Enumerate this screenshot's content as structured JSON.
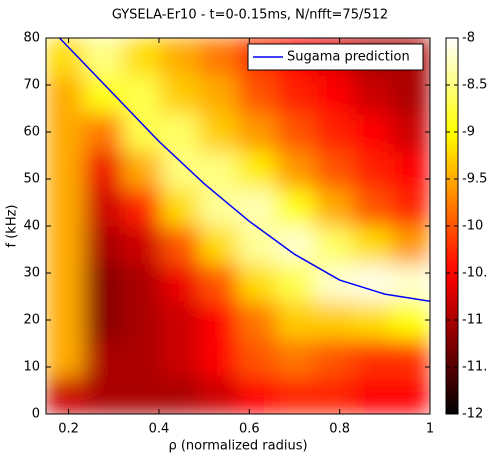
{
  "chart_data": {
    "type": "heatmap",
    "title": "GYSELA-Er10 - t=0-0.15ms, N/nfft=75/512",
    "xlabel": "ρ (normalized radius)",
    "ylabel": "f (kHz)",
    "colormap": "hot",
    "xlim": [
      0.15,
      1
    ],
    "ylim": [
      0,
      80
    ],
    "xticks": [
      0.2,
      0.4,
      0.6,
      0.8,
      1
    ],
    "yticks": [
      0,
      10,
      20,
      30,
      40,
      50,
      60,
      70,
      80
    ],
    "zlim": [
      -12,
      -8
    ],
    "zticks": [
      -8,
      -8.5,
      -9,
      -9.5,
      -10,
      {
        "value": -10.5,
        "label": "-10."
      },
      -11,
      {
        "value": -11.5,
        "label": "-11."
      },
      -12
    ],
    "x": [
      0.1925,
      0.2775,
      0.3625,
      0.4475,
      0.5325,
      0.6175,
      0.7025,
      0.7875,
      0.8725,
      0.9575
    ],
    "y": [
      4,
      12,
      20,
      28,
      36,
      44,
      52,
      60,
      68,
      76
    ],
    "z": [
      [
        -10.8,
        -11,
        -11,
        -11,
        -10.8,
        -10.5,
        -10.3,
        -10.3,
        -10.5,
        -10.5
      ],
      [
        -9.5,
        -11,
        -11,
        -10.8,
        -10.5,
        -10,
        -9.8,
        -10,
        -10.2,
        -10.2
      ],
      [
        -9.5,
        -11.2,
        -11,
        -10.8,
        -10.5,
        -9.8,
        -9.3,
        -9.3,
        -9.2,
        -9
      ],
      [
        -9.5,
        -11.2,
        -11,
        -10.6,
        -10,
        -9.2,
        -8.7,
        -8.2,
        -8.1,
        -8.2
      ],
      [
        -9.5,
        -11,
        -10.8,
        -10,
        -9.2,
        -8.4,
        -8.2,
        -8.6,
        -9.2,
        -9.6
      ],
      [
        -9.5,
        -10.8,
        -10.3,
        -9.2,
        -8.4,
        -8.3,
        -8.9,
        -9.5,
        -10,
        -10.3
      ],
      [
        -9.5,
        -10.6,
        -9.5,
        -8.5,
        -8.5,
        -9.1,
        -9.6,
        -10,
        -10.3,
        -10.5
      ],
      [
        -9.5,
        -9.8,
        -8.7,
        -8.6,
        -9.3,
        -9.6,
        -10,
        -10.3,
        -10.5,
        -10.8
      ],
      [
        -9.5,
        -8.9,
        -8.7,
        -9.3,
        -9.5,
        -10,
        -10.3,
        -10.5,
        -10.8,
        -11
      ],
      [
        -9.2,
        -8.5,
        -9.2,
        -9.5,
        -9.8,
        -10.2,
        -10.5,
        -10.7,
        -11,
        -11
      ]
    ],
    "series": [
      {
        "name": "Sugama prediction",
        "color": "#0000ff",
        "x": [
          0.18,
          0.2,
          0.3,
          0.4,
          0.5,
          0.6,
          0.7,
          0.8,
          0.9,
          1.0
        ],
        "values": [
          80,
          78,
          68,
          58,
          49,
          41,
          34,
          28.5,
          25.5,
          24
        ]
      }
    ],
    "legend": "upper right"
  }
}
